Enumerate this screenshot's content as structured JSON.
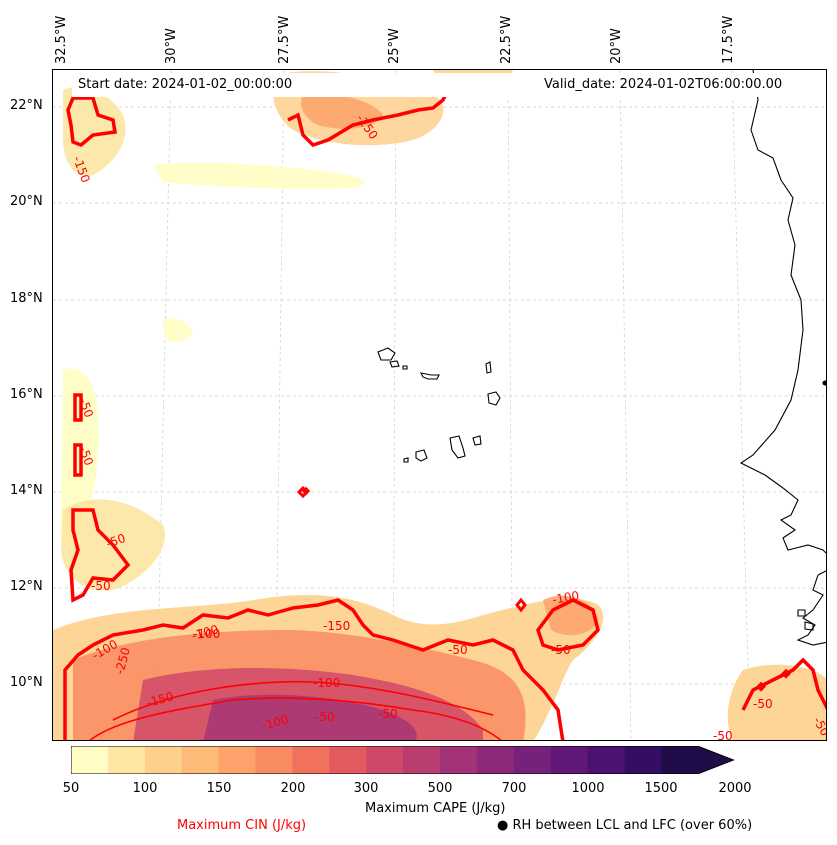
{
  "header": {
    "start_date": "Start date: 2024-01-02_00:00:00",
    "valid_date": "Valid_date: 2024-01-02T06:00:00.00"
  },
  "axes": {
    "longitude_labels": [
      "32.5°W",
      "30°W",
      "27.5°W",
      "25°W",
      "22.5°W",
      "20°W",
      "17.5°W"
    ],
    "latitude_labels": [
      "22°N",
      "20°N",
      "18°N",
      "16°N",
      "14°N",
      "12°N",
      "10°N"
    ]
  },
  "contour_labels": [
    "-250",
    "-150",
    "-100",
    "-50",
    "-100",
    "-150",
    "-100",
    "-50",
    "-50",
    "-50",
    "-50",
    "-50",
    "-50",
    "-50",
    "-150",
    "-100",
    "-50",
    "-50",
    "-250",
    "-100",
    "-50",
    "-100"
  ],
  "colorbar": {
    "ticks": [
      "50",
      "100",
      "150",
      "200",
      "300",
      "500",
      "700",
      "1000",
      "1500",
      "2000"
    ],
    "colors": [
      "#fffdc5",
      "#fde6a2",
      "#fdd08c",
      "#fdba78",
      "#fca26a",
      "#f98b61",
      "#f1725c",
      "#e35b5f",
      "#cf4a68",
      "#b93d70",
      "#a23376",
      "#8c2a79",
      "#76217a",
      "#611979",
      "#4b1274",
      "#350e64",
      "#1f0c48"
    ],
    "label": "Maximum CAPE (J/kg)"
  },
  "legend": {
    "cin_label": "Maximum CIN (J/kg)",
    "cin_color": "#ff0000",
    "rh_label": "RH between LCL and LFC (over 60%)",
    "rh_marker": "●"
  }
}
